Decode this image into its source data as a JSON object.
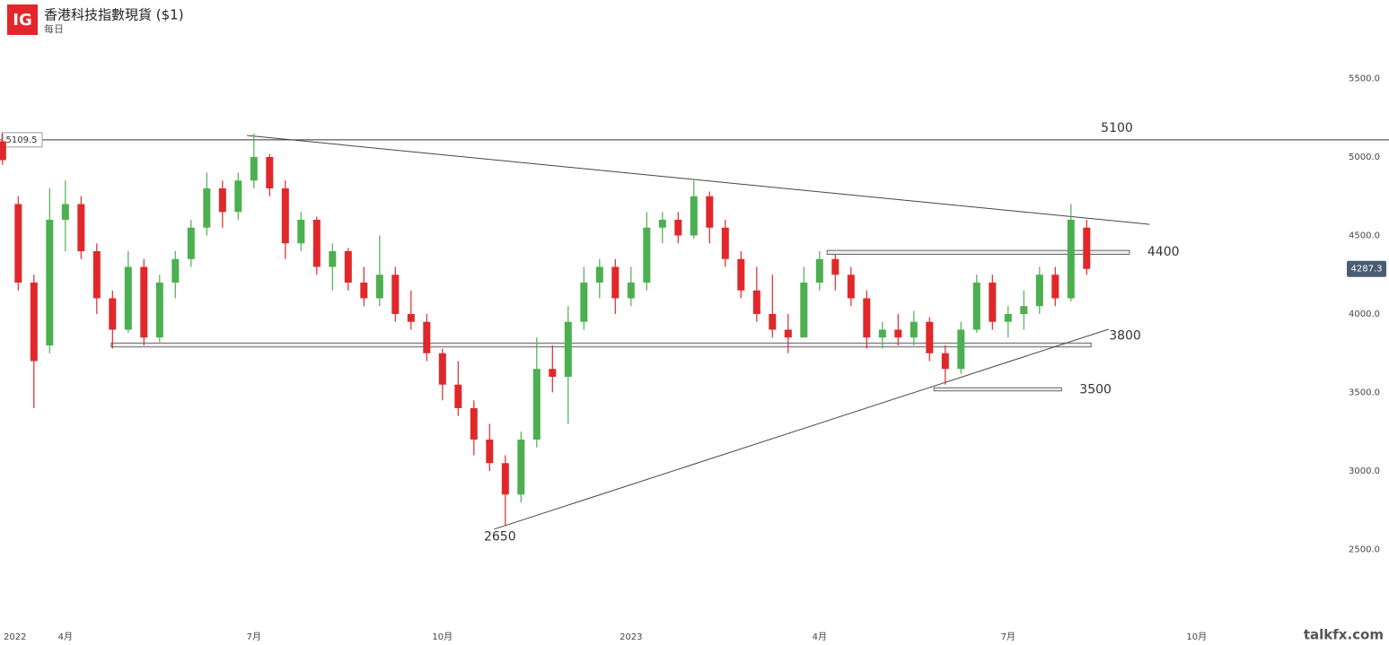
{
  "header": {
    "logo": "IG",
    "title": "香港科技指數現貨 ($1)",
    "subtitle": "每日"
  },
  "watermark": "talkfx.com",
  "chart_data": {
    "type": "candlestick",
    "up_color": "#4caf50",
    "down_color": "#e0282b",
    "x": [
      2,
      2.25,
      2.5,
      2.75,
      3,
      3.25,
      3.5,
      3.75,
      4,
      4.25,
      4.5,
      4.75,
      5,
      5.25,
      5.5,
      5.75,
      6,
      6.25,
      6.5,
      6.75,
      7,
      7.25,
      7.5,
      7.75,
      8,
      8.25,
      8.5,
      8.75,
      9,
      9.25,
      9.5,
      9.75,
      10,
      10.25,
      10.5,
      10.75,
      11,
      11.25,
      11.5,
      11.75,
      12,
      12.25,
      12.5,
      12.75,
      13,
      13.25,
      13.5,
      13.75,
      14,
      14.25,
      14.5,
      14.75,
      15,
      15.25,
      15.5,
      15.75,
      16,
      16.25,
      16.5,
      16.75,
      17,
      17.25,
      17.5,
      17.75,
      18,
      18.25,
      18.5,
      18.75,
      19,
      19.25
    ],
    "open": [
      5100,
      4700,
      4200,
      3800,
      4600,
      4700,
      4400,
      4100,
      3900,
      4300,
      3850,
      4200,
      4350,
      4550,
      4800,
      4650,
      4850,
      5000,
      4800,
      4450,
      4600,
      4300,
      4400,
      4200,
      4100,
      4250,
      4000,
      3950,
      3750,
      3550,
      3400,
      3200,
      3050,
      2850,
      3200,
      3650,
      3600,
      3950,
      4200,
      4300,
      4100,
      4200,
      4550,
      4600,
      4500,
      4750,
      4550,
      4350,
      4150,
      4000,
      3900,
      3850,
      4200,
      4350,
      4250,
      4100,
      3850,
      3900,
      3850,
      3950,
      3750,
      3650,
      3900,
      4200,
      3950,
      4000,
      4050,
      4250,
      4100,
      4550
    ],
    "high": [
      5150,
      4750,
      4250,
      4800,
      4850,
      4750,
      4450,
      4150,
      4400,
      4350,
      4250,
      4400,
      4600,
      4900,
      4850,
      4900,
      5150,
      5020,
      4850,
      4650,
      4620,
      4450,
      4420,
      4300,
      4500,
      4300,
      4150,
      4000,
      3780,
      3700,
      3450,
      3300,
      3100,
      3250,
      3850,
      3800,
      4050,
      4300,
      4350,
      4350,
      4300,
      4650,
      4650,
      4650,
      4850,
      4780,
      4600,
      4400,
      4300,
      4250,
      4000,
      4300,
      4400,
      4380,
      4300,
      4150,
      3950,
      4000,
      4020,
      3980,
      3800,
      3950,
      4250,
      4250,
      4050,
      4150,
      4300,
      4300,
      4700,
      4600
    ],
    "low": [
      4950,
      4150,
      3400,
      3750,
      4400,
      4350,
      4000,
      3780,
      3880,
      3800,
      3820,
      4100,
      4300,
      4500,
      4550,
      4600,
      4800,
      4750,
      4350,
      4400,
      4250,
      4150,
      4150,
      4050,
      4050,
      3950,
      3900,
      3700,
      3450,
      3350,
      3100,
      3000,
      2650,
      2800,
      3150,
      3500,
      3300,
      3900,
      4100,
      4000,
      4050,
      4150,
      4450,
      4450,
      4480,
      4450,
      4300,
      4100,
      3950,
      3850,
      3750,
      3850,
      4150,
      4150,
      4050,
      3780,
      3780,
      3800,
      3800,
      3700,
      3550,
      3620,
      3880,
      3900,
      3850,
      3900,
      4000,
      4050,
      4080,
      4250
    ],
    "close": [
      4980,
      4200,
      3700,
      4600,
      4700,
      4400,
      4100,
      3900,
      4300,
      3850,
      4200,
      4350,
      4550,
      4800,
      4650,
      4850,
      5000,
      4800,
      4450,
      4600,
      4300,
      4400,
      4200,
      4100,
      4250,
      4000,
      3950,
      3750,
      3550,
      3400,
      3200,
      3050,
      2850,
      3200,
      3650,
      3600,
      3950,
      4200,
      4300,
      4100,
      4200,
      4550,
      4600,
      4500,
      4750,
      4550,
      4350,
      4150,
      4000,
      3900,
      3850,
      4200,
      4350,
      4250,
      4100,
      3850,
      3900,
      3850,
      3950,
      3750,
      3650,
      3900,
      4200,
      3950,
      4000,
      4050,
      4250,
      4100,
      4600,
      4287.3
    ],
    "xlim": [
      1.96,
      24.06
    ],
    "ylim": [
      2000,
      6000
    ],
    "xticks": [
      {
        "value": 2.2,
        "label": "2022"
      },
      {
        "value": 3,
        "label": "4月"
      },
      {
        "value": 6,
        "label": "7月"
      },
      {
        "value": 9,
        "label": "10月"
      },
      {
        "value": 12,
        "label": "2023"
      },
      {
        "value": 15,
        "label": "4月"
      },
      {
        "value": 18,
        "label": "7月"
      },
      {
        "value": 21,
        "label": "10月"
      }
    ],
    "yticks": [
      {
        "value": 2500,
        "label": "2500.0"
      },
      {
        "value": 3000,
        "label": "3000.0"
      },
      {
        "value": 3500,
        "label": "3500.0"
      },
      {
        "value": 4000,
        "label": "4000.0"
      },
      {
        "value": 4500,
        "label": "4500.0"
      },
      {
        "value": 5000,
        "label": "5000.0"
      },
      {
        "value": 5500,
        "label": "5500.0"
      }
    ],
    "hline": {
      "value": 5109.5,
      "label": "5100"
    },
    "trendlines": [
      {
        "x": [
          5.89,
          20.25
        ],
        "y": [
          5137,
          4571
        ]
      },
      {
        "x": [
          9.82,
          19.6
        ],
        "y": [
          2629,
          3903
        ]
      }
    ],
    "zones": [
      {
        "label": "4400",
        "x": [
          15.12,
          19.93
        ],
        "y": [
          4380,
          4405
        ]
      },
      {
        "label": "3800",
        "x": [
          3.73,
          19.32
        ],
        "y": [
          3790,
          3815
        ]
      },
      {
        "label": "3500",
        "x": [
          16.82,
          18.85
        ],
        "y": [
          3510,
          3530
        ]
      }
    ]
  }
}
